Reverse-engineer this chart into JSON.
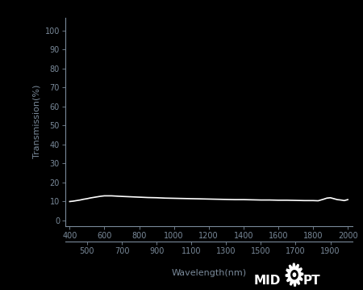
{
  "background_color": "#000000",
  "plot_bg_color": "#000000",
  "line_color": "#ffffff",
  "line_width": 1.2,
  "tick_color": "#7a8a9a",
  "label_color": "#7a8a9a",
  "xlabel": "Wavelength(nm)",
  "ylabel": "Transmission(%)",
  "xlim": [
    375,
    2025
  ],
  "ylim": [
    -3,
    107
  ],
  "yticks": [
    0,
    10,
    20,
    30,
    40,
    50,
    60,
    70,
    80,
    90,
    100
  ],
  "xticks_top": [
    400,
    600,
    800,
    1000,
    1200,
    1400,
    1600,
    1800,
    2000
  ],
  "xticks_bottom": [
    500,
    700,
    900,
    1100,
    1300,
    1500,
    1700,
    1900
  ],
  "wavelengths": [
    400,
    420,
    440,
    460,
    480,
    500,
    520,
    540,
    560,
    580,
    600,
    620,
    640,
    660,
    680,
    700,
    750,
    800,
    850,
    900,
    950,
    1000,
    1050,
    1100,
    1150,
    1200,
    1250,
    1300,
    1350,
    1400,
    1450,
    1500,
    1550,
    1600,
    1650,
    1700,
    1750,
    1800,
    1830,
    1860,
    1880,
    1900,
    1920,
    1940,
    1960,
    1980,
    2000
  ],
  "transmission": [
    10.0,
    10.2,
    10.5,
    10.8,
    11.2,
    11.5,
    11.9,
    12.2,
    12.5,
    12.8,
    13.0,
    13.0,
    13.0,
    12.9,
    12.8,
    12.7,
    12.5,
    12.3,
    12.1,
    12.0,
    11.8,
    11.7,
    11.6,
    11.5,
    11.4,
    11.3,
    11.2,
    11.1,
    11.0,
    11.0,
    10.9,
    10.8,
    10.8,
    10.7,
    10.7,
    10.6,
    10.5,
    10.5,
    10.4,
    11.2,
    11.8,
    12.0,
    11.5,
    11.0,
    10.8,
    10.5,
    11.0
  ],
  "tick_fontsize": 7,
  "label_fontsize": 8,
  "logo_fontsize": 11
}
